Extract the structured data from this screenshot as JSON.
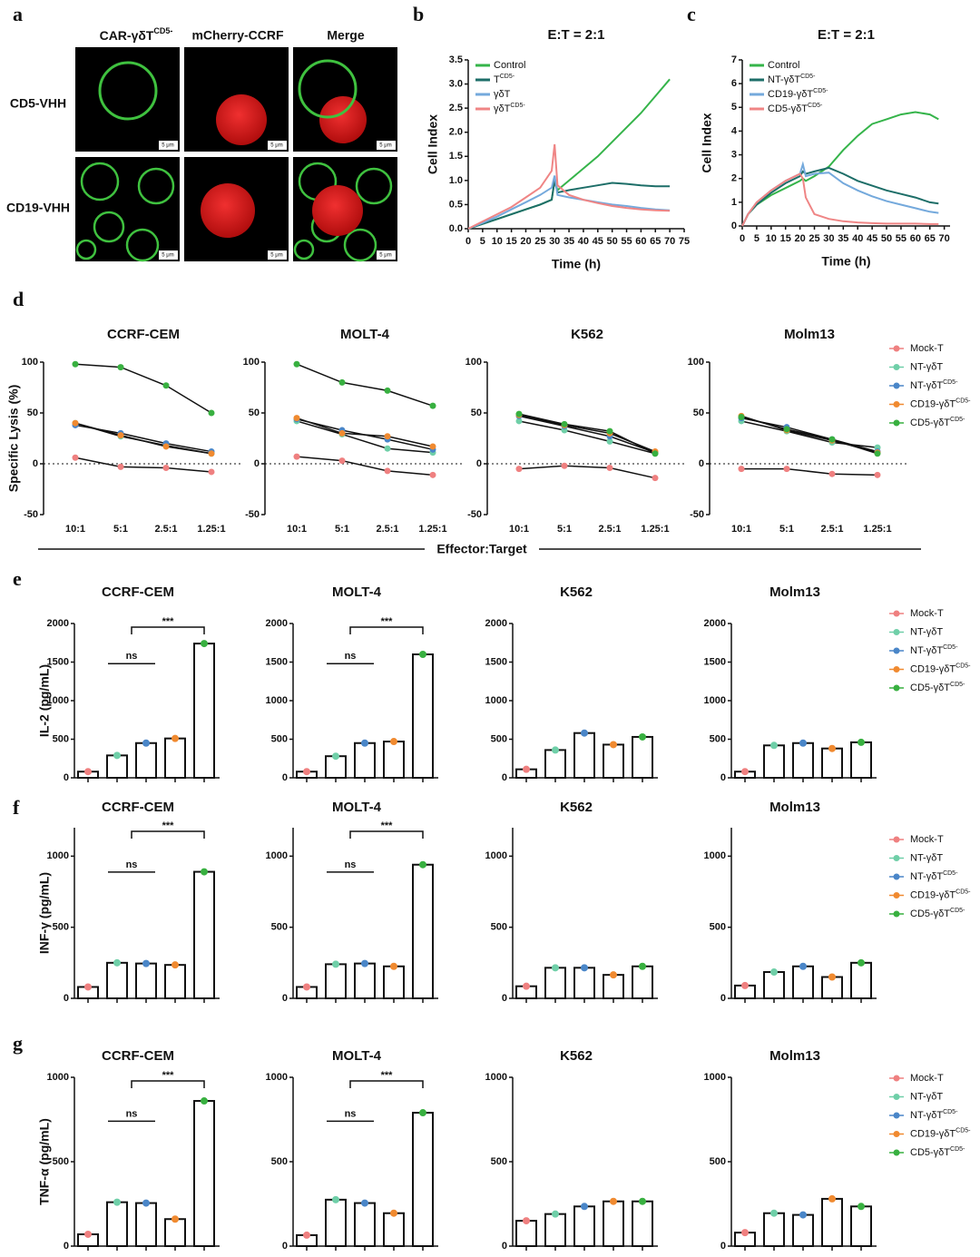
{
  "panel_a": {
    "label": "a",
    "columns": [
      {
        "name": "CAR-γδT",
        "sup": "CD5-"
      },
      {
        "name": "mCherry-CCRF"
      },
      {
        "name": "Merge"
      }
    ],
    "rows": [
      "CD5-VHH",
      "CD19-VHH"
    ],
    "scale_bar": "5 μm"
  },
  "chart_data": [
    {
      "type": "line",
      "panel": "b",
      "title": "E:T = 2:1",
      "xlabel": "Time (h)",
      "ylabel": "Cell Index",
      "x": [
        0,
        5,
        10,
        15,
        20,
        25,
        29,
        30,
        31,
        35,
        40,
        45,
        50,
        55,
        60,
        65,
        70
      ],
      "series": [
        {
          "name": "Control",
          "color": "#35b44a",
          "values": [
            0,
            0.1,
            0.2,
            0.3,
            0.4,
            0.5,
            0.6,
            1.0,
            0.8,
            1.0,
            1.25,
            1.5,
            1.8,
            2.1,
            2.4,
            2.75,
            3.1
          ]
        },
        {
          "name": "T",
          "sup": "CD5-",
          "color": "#1d6e68",
          "values": [
            0,
            0.1,
            0.2,
            0.3,
            0.4,
            0.5,
            0.6,
            1.0,
            0.75,
            0.8,
            0.85,
            0.9,
            0.95,
            0.93,
            0.9,
            0.88,
            0.88
          ]
        },
        {
          "name": "γδT",
          "color": "#74a9dc",
          "values": [
            0,
            0.12,
            0.25,
            0.4,
            0.55,
            0.7,
            0.85,
            1.1,
            0.7,
            0.65,
            0.6,
            0.55,
            0.5,
            0.47,
            0.43,
            0.4,
            0.38
          ]
        },
        {
          "name": "γδT",
          "sup": "CD5-",
          "color": "#ef8585",
          "values": [
            0,
            0.15,
            0.3,
            0.45,
            0.65,
            0.85,
            1.2,
            1.75,
            0.9,
            0.7,
            0.6,
            0.53,
            0.47,
            0.43,
            0.4,
            0.38,
            0.37
          ]
        }
      ],
      "xlim": [
        0,
        75
      ],
      "ylim": [
        0,
        3.5
      ],
      "xticks": [
        0,
        5,
        10,
        15,
        20,
        25,
        30,
        35,
        40,
        45,
        50,
        55,
        60,
        65,
        70,
        75
      ],
      "yticks": [
        {
          "value": 0,
          "label": "0.0"
        },
        0.5,
        {
          "value": 1,
          "label": "1.0"
        },
        1.5,
        {
          "value": 2,
          "label": "2.0"
        },
        2.5,
        {
          "value": 3,
          "label": "3.0"
        },
        3.5
      ]
    },
    {
      "type": "line",
      "panel": "c",
      "title": "E:T = 2:1",
      "xlabel": "Time (h)",
      "ylabel": "Cell Index",
      "x": [
        0,
        2,
        5,
        10,
        15,
        20,
        21,
        22,
        25,
        30,
        35,
        40,
        45,
        50,
        55,
        60,
        65,
        68
      ],
      "series": [
        {
          "name": "Control",
          "color": "#35b44a",
          "values": [
            0,
            0.5,
            0.9,
            1.3,
            1.6,
            1.9,
            2.0,
            1.9,
            2.1,
            2.5,
            3.2,
            3.8,
            4.3,
            4.5,
            4.7,
            4.8,
            4.7,
            4.5
          ]
        },
        {
          "name": "NT-γδT",
          "sup": "CD5-",
          "color": "#1d6e68",
          "values": [
            0,
            0.5,
            0.9,
            1.4,
            1.8,
            2.1,
            2.3,
            2.2,
            2.3,
            2.45,
            2.2,
            1.9,
            1.7,
            1.5,
            1.35,
            1.2,
            1.0,
            0.95
          ]
        },
        {
          "name": "CD19-γδT",
          "sup": "CD5-",
          "color": "#74a9dc",
          "values": [
            0,
            0.5,
            1.0,
            1.5,
            1.9,
            2.2,
            2.6,
            2.1,
            2.2,
            2.25,
            1.8,
            1.5,
            1.25,
            1.05,
            0.9,
            0.75,
            0.6,
            0.55
          ]
        },
        {
          "name": "CD5-γδT",
          "sup": "CD5-",
          "color": "#ef8585",
          "values": [
            0,
            0.5,
            1.0,
            1.5,
            1.9,
            2.2,
            2.0,
            1.2,
            0.5,
            0.3,
            0.2,
            0.15,
            0.12,
            0.1,
            0.1,
            0.1,
            0.08,
            0.08
          ]
        }
      ],
      "xlim": [
        0,
        72
      ],
      "ylim": [
        0,
        7
      ],
      "xticks": [
        0,
        5,
        10,
        15,
        20,
        25,
        30,
        35,
        40,
        45,
        50,
        55,
        60,
        65,
        70
      ],
      "yticks": [
        0,
        1,
        2,
        3,
        4,
        5,
        6,
        7
      ]
    },
    {
      "type": "line",
      "panel": "d",
      "ylabel": "Specific Lysis (%)",
      "xlabel": "Effector:Target",
      "categories": [
        "10:1",
        "5:1",
        "2.5:1",
        "1.25:1"
      ],
      "ylim": [
        -50,
        100
      ],
      "yticks": [
        -50,
        0,
        50,
        100
      ],
      "series": [
        {
          "name": "Mock-T",
          "color": "#ef8080"
        },
        {
          "name": "NT-γδT",
          "color": "#6fcfa8"
        },
        {
          "name": "NT-γδT",
          "sup": "CD5-",
          "color": "#4a86c8"
        },
        {
          "name": "CD19-γδT",
          "sup": "CD5-",
          "color": "#f08a30"
        },
        {
          "name": "CD5-γδT",
          "sup": "CD5-",
          "color": "#38b040"
        }
      ],
      "subplots": [
        {
          "title": "CCRF-CEM",
          "values": [
            [
              6,
              -3,
              -4,
              -8
            ],
            [
              40,
              27,
              18,
              10
            ],
            [
              38,
              30,
              20,
              12
            ],
            [
              40,
              28,
              17,
              10
            ],
            [
              98,
              95,
              77,
              50
            ]
          ]
        },
        {
          "title": "MOLT-4",
          "values": [
            [
              7,
              3,
              -7,
              -11
            ],
            [
              42,
              29,
              15,
              11
            ],
            [
              44,
              33,
              24,
              14
            ],
            [
              45,
              30,
              27,
              17
            ],
            [
              98,
              80,
              72,
              57
            ]
          ]
        },
        {
          "title": "K562",
          "values": [
            [
              -5,
              -2,
              -4,
              -14
            ],
            [
              42,
              33,
              22,
              10
            ],
            [
              47,
              37,
              27,
              11
            ],
            [
              48,
              38,
              30,
              12
            ],
            [
              49,
              39,
              32,
              10
            ]
          ]
        },
        {
          "title": "Molm13",
          "values": [
            [
              -5,
              -5,
              -10,
              -11
            ],
            [
              42,
              32,
              21,
              16
            ],
            [
              45,
              36,
              24,
              12
            ],
            [
              47,
              33,
              23,
              11
            ],
            [
              46,
              34,
              24,
              10
            ]
          ]
        }
      ]
    },
    {
      "type": "bar",
      "panel": "e",
      "ylabel": "IL-2 (pg/mL)",
      "ylim": [
        0,
        2000
      ],
      "yticks": [
        0,
        500,
        1000,
        1500,
        2000
      ],
      "series": [
        {
          "name": "Mock-T",
          "color": "#ef8080"
        },
        {
          "name": "NT-γδT",
          "color": "#6fcfa8"
        },
        {
          "name": "NT-γδT",
          "sup": "CD5-",
          "color": "#4a86c8"
        },
        {
          "name": "CD19-γδT",
          "sup": "CD5-",
          "color": "#f08a30"
        },
        {
          "name": "CD5-γδT",
          "sup": "CD5-",
          "color": "#38b040"
        }
      ],
      "subplots": [
        {
          "title": "CCRF-CEM",
          "values": [
            80,
            290,
            450,
            510,
            1740
          ],
          "annotations": [
            "ns",
            "***"
          ]
        },
        {
          "title": "MOLT-4",
          "values": [
            80,
            280,
            450,
            470,
            1600
          ],
          "annotations": [
            "ns",
            "***"
          ]
        },
        {
          "title": "K562",
          "values": [
            110,
            360,
            580,
            430,
            530
          ]
        },
        {
          "title": "Molm13",
          "values": [
            80,
            420,
            450,
            380,
            460
          ]
        }
      ]
    },
    {
      "type": "bar",
      "panel": "f",
      "ylabel": "INF-γ (pg/mL)",
      "ylim": [
        0,
        1200
      ],
      "yticks": [
        0,
        500,
        1000
      ],
      "series": [
        {
          "name": "Mock-T",
          "color": "#ef8080"
        },
        {
          "name": "NT-γδT",
          "color": "#6fcfa8"
        },
        {
          "name": "NT-γδT",
          "sup": "CD5-",
          "color": "#4a86c8"
        },
        {
          "name": "CD19-γδT",
          "sup": "CD5-",
          "color": "#f08a30"
        },
        {
          "name": "CD5-γδT",
          "sup": "CD5-",
          "color": "#38b040"
        }
      ],
      "subplots": [
        {
          "title": "CCRF-CEM",
          "values": [
            80,
            250,
            245,
            235,
            890
          ],
          "annotations": [
            "ns",
            "***"
          ]
        },
        {
          "title": "MOLT-4",
          "values": [
            80,
            240,
            245,
            225,
            940
          ],
          "annotations": [
            "ns",
            "***"
          ]
        },
        {
          "title": "K562",
          "values": [
            85,
            215,
            215,
            165,
            225
          ]
        },
        {
          "title": "Molm13",
          "values": [
            90,
            185,
            225,
            150,
            250
          ]
        }
      ]
    },
    {
      "type": "bar",
      "panel": "g",
      "ylabel": "TNF-α (pg/mL)",
      "ylim": [
        0,
        1000
      ],
      "yticks": [
        0,
        500,
        1000
      ],
      "series": [
        {
          "name": "Mock-T",
          "color": "#ef8080"
        },
        {
          "name": "NT-γδT",
          "color": "#6fcfa8"
        },
        {
          "name": "NT-γδT",
          "sup": "CD5-",
          "color": "#4a86c8"
        },
        {
          "name": "CD19-γδT",
          "sup": "CD5-",
          "color": "#f08a30"
        },
        {
          "name": "CD5-γδT",
          "sup": "CD5-",
          "color": "#38b040"
        }
      ],
      "subplots": [
        {
          "title": "CCRF-CEM",
          "values": [
            70,
            260,
            255,
            160,
            860
          ],
          "annotations": [
            "ns",
            "***"
          ]
        },
        {
          "title": "MOLT-4",
          "values": [
            65,
            275,
            255,
            195,
            790
          ],
          "annotations": [
            "ns",
            "***"
          ]
        },
        {
          "title": "K562",
          "values": [
            150,
            190,
            235,
            265,
            265
          ]
        },
        {
          "title": "Molm13",
          "values": [
            80,
            195,
            185,
            280,
            235
          ]
        }
      ]
    }
  ]
}
